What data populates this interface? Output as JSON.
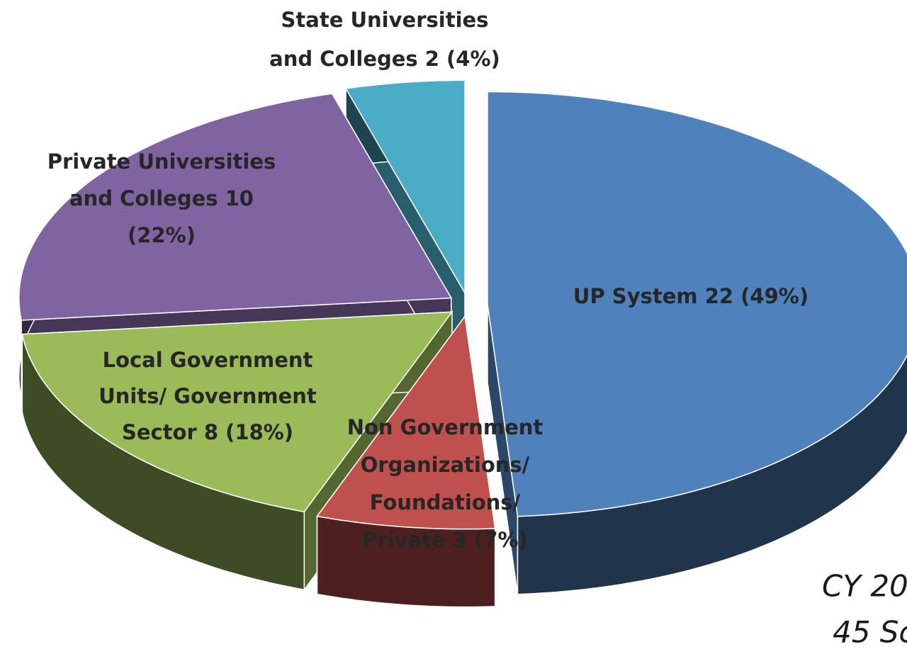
{
  "chart_data": {
    "type": "pie3d",
    "categories": [
      [
        "UP System 22 (49%)"
      ],
      [
        "Non Government",
        "Organizations/",
        "Foundations/",
        "Private 3 (7%)"
      ],
      [
        "Local Government",
        "Units/ Government",
        "Sector 8 (18%)"
      ],
      [
        "Private Universities",
        "and Colleges 10",
        "(22%)"
      ],
      [
        "State Universities",
        "and Colleges 2 (4%)"
      ]
    ],
    "values": [
      22,
      3,
      8,
      10,
      2
    ],
    "colors": [
      "#4f81bd",
      "#c0504d",
      "#9bbb59",
      "#8064a2",
      "#4bacc6"
    ],
    "annotations": [
      "CY 20",
      "45 Sc"
    ]
  }
}
